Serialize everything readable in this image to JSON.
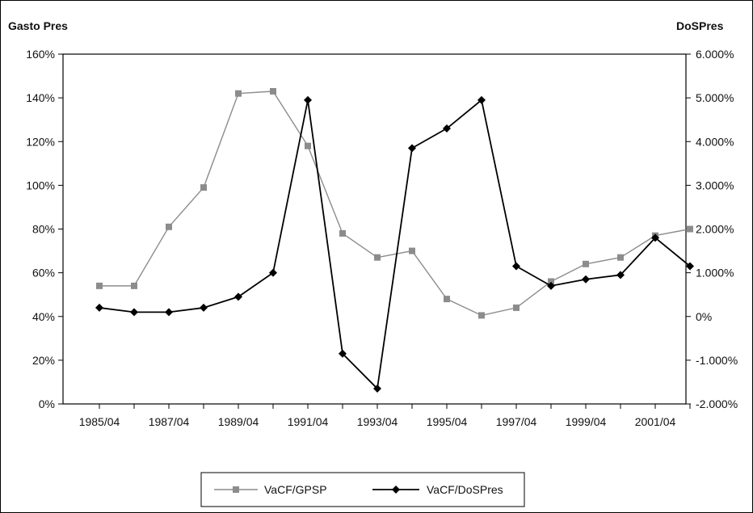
{
  "chart_data": {
    "type": "line",
    "y_left_label": "Gasto Pres",
    "y_right_label": "DoSPres",
    "x": [
      "1985/04",
      "1986/04",
      "1987/04",
      "1988/04",
      "1989/04",
      "1990/04",
      "1991/04",
      "1992/04",
      "1993/04",
      "1994/04",
      "1995/04",
      "1996/04",
      "1997/04",
      "1998/04",
      "1999/04",
      "2000/04",
      "2001/04",
      "2002/04"
    ],
    "x_tick_labels": [
      "1985/04",
      "1987/04",
      "1989/04",
      "1991/04",
      "1993/04",
      "1995/04",
      "1997/04",
      "1999/04",
      "2001/04"
    ],
    "y_left_ticks": [
      "0%",
      "20%",
      "40%",
      "60%",
      "80%",
      "100%",
      "120%",
      "140%",
      "160%"
    ],
    "y_right_ticks": [
      "-2.000%",
      "-1.000%",
      "0%",
      "1.000%",
      "2.000%",
      "3.000%",
      "4.000%",
      "5.000%",
      "6.000%"
    ],
    "y_left_lim": [
      0,
      160
    ],
    "y_right_lim": [
      -2,
      6
    ],
    "series": [
      {
        "name": "VaCF/GPSP",
        "axis": "left",
        "color": "#8c8c8c",
        "marker": "square",
        "values": [
          54,
          54,
          81,
          99,
          142,
          143,
          118,
          78,
          67,
          70,
          48,
          40.5,
          44,
          56,
          64,
          67,
          77,
          80
        ]
      },
      {
        "name": "VaCF/DoSPres",
        "axis": "right",
        "color": "#000000",
        "marker": "diamond",
        "values": [
          0.2,
          0.1,
          0.1,
          0.2,
          0.45,
          1.0,
          4.95,
          -0.85,
          -1.65,
          3.85,
          4.3,
          4.95,
          1.15,
          0.7,
          0.85,
          0.95,
          1.8,
          1.15
        ]
      }
    ],
    "grid": false,
    "legend_position": "bottom"
  }
}
